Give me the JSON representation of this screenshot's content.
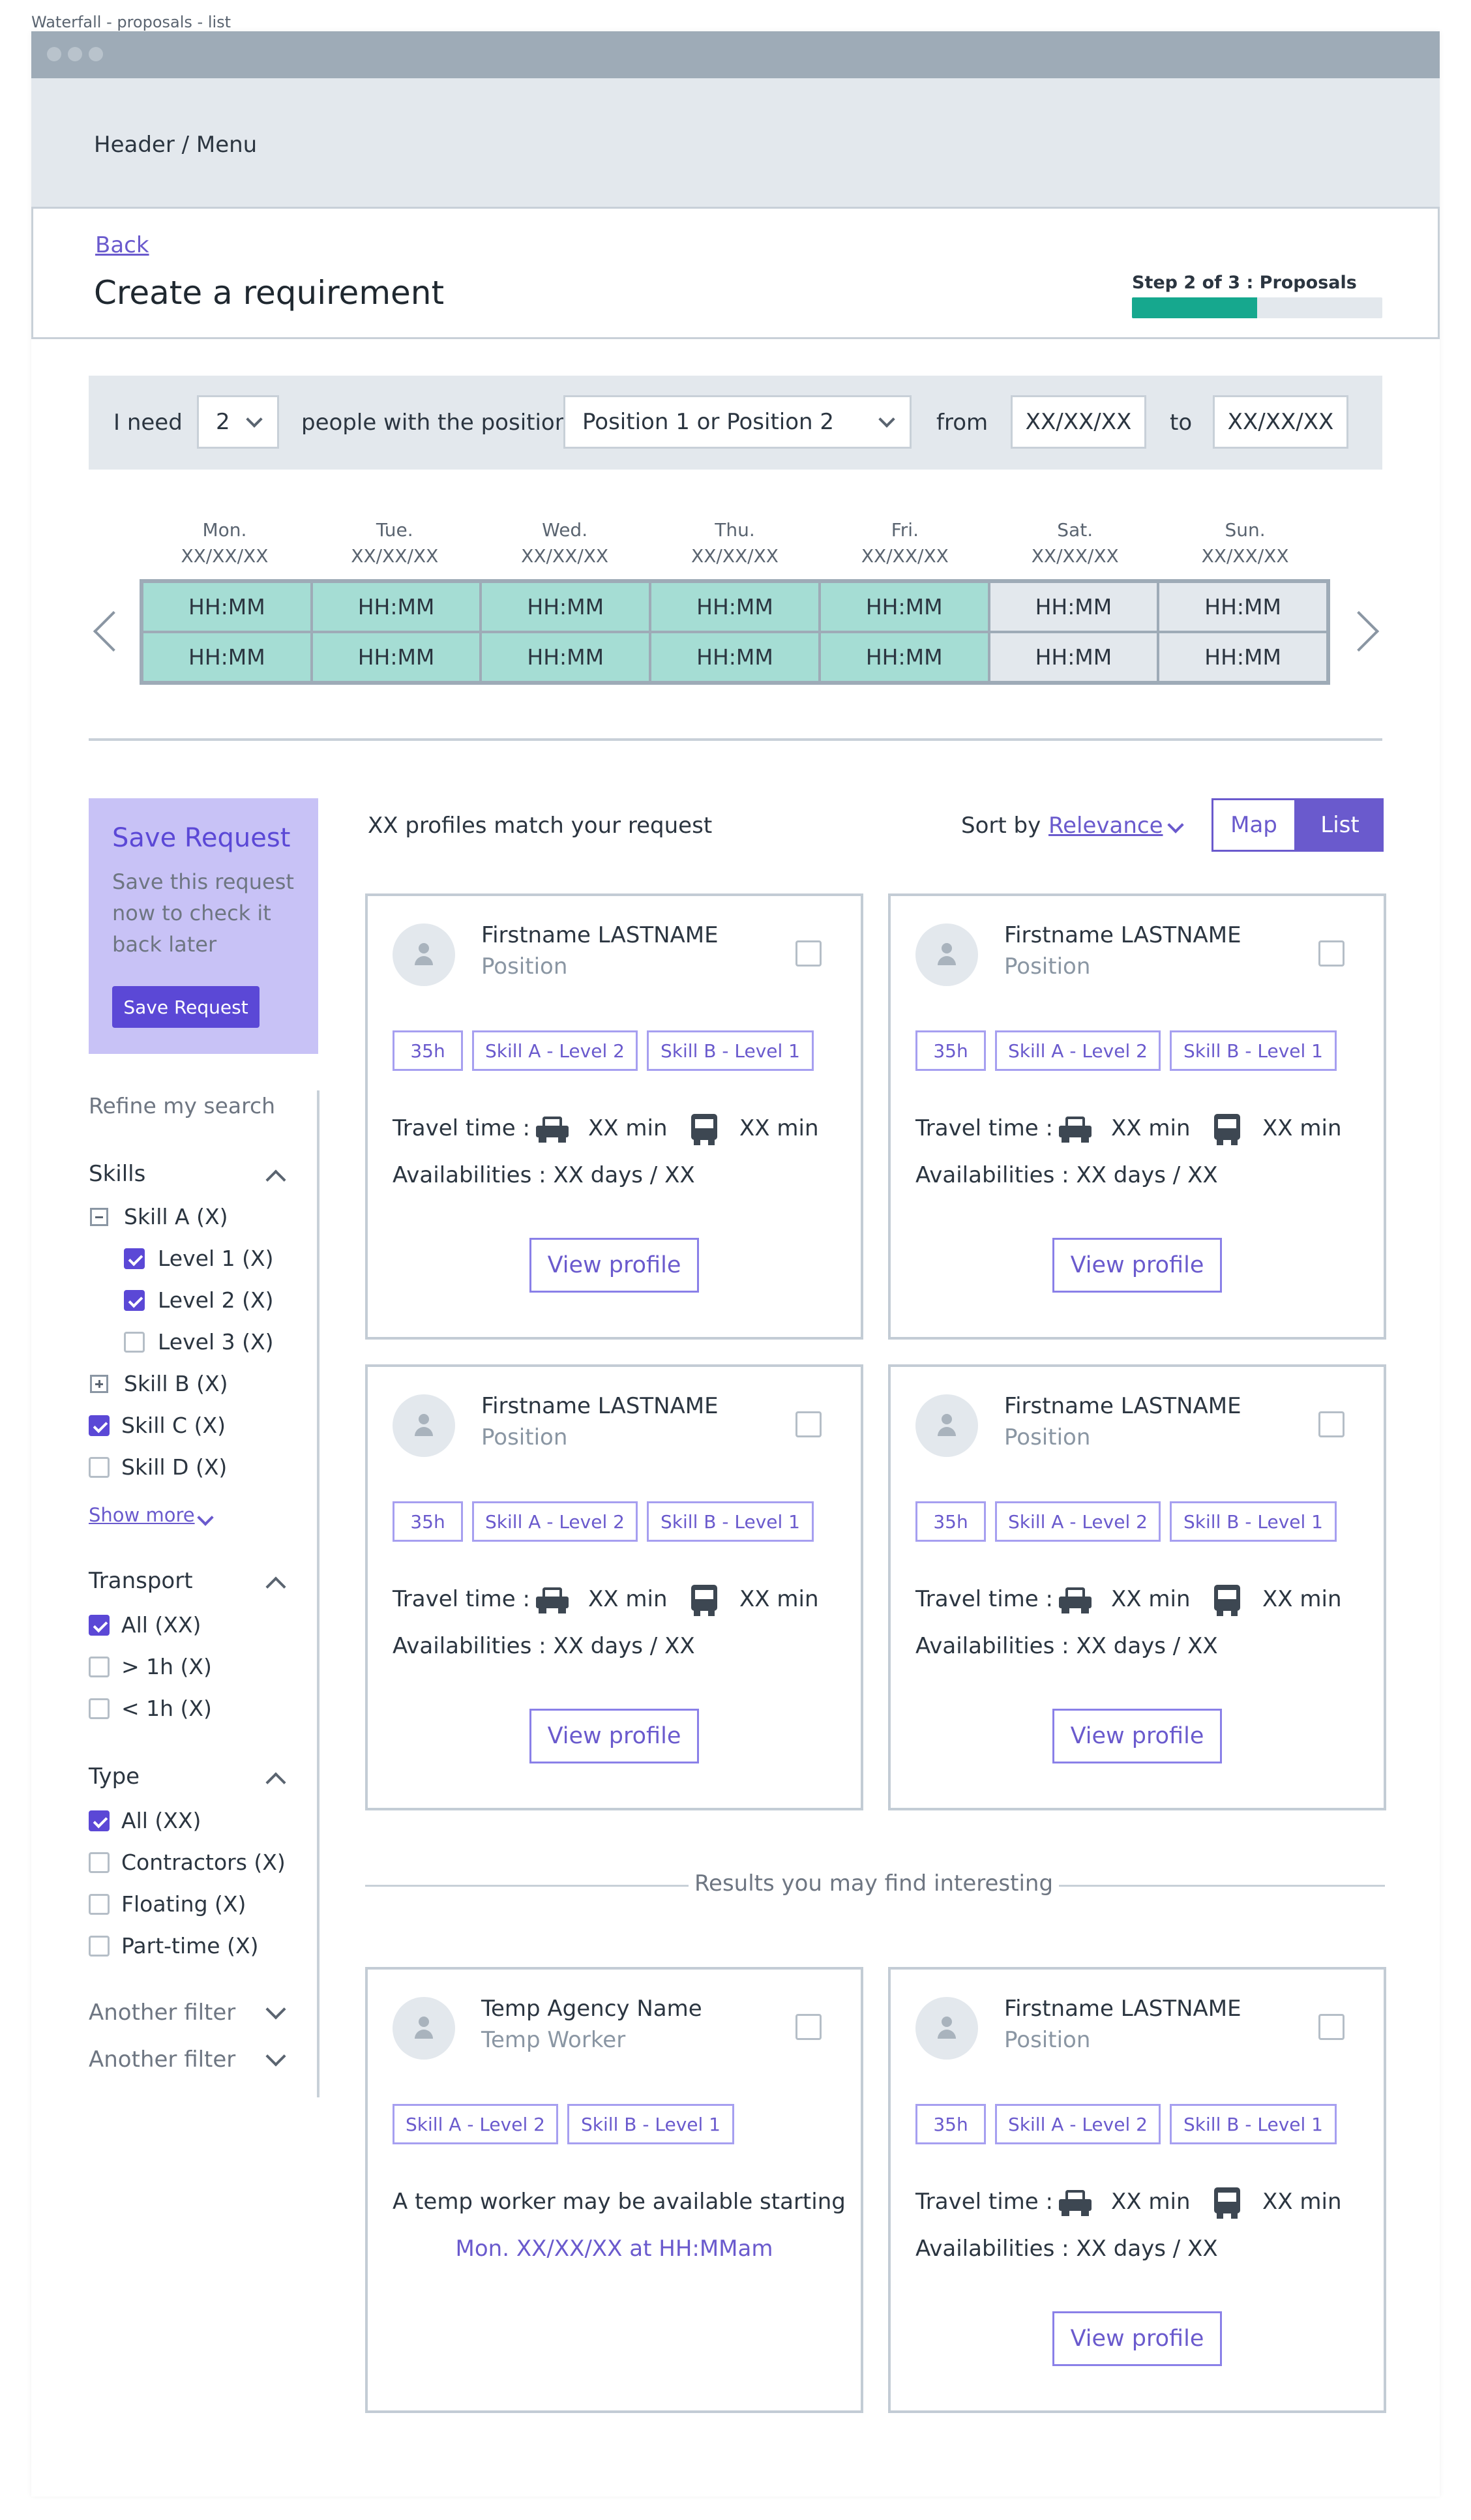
{
  "page_label": "Waterfall - proposals - list",
  "header": {
    "menu_label": "Header / Menu"
  },
  "title_section": {
    "back_label": "Back",
    "title": "Create a requirement",
    "step_label": "Step 2 of 3 : Proposals",
    "progress": 0.5
  },
  "request_bar": {
    "i_need": "I need",
    "quantity": "2",
    "people_label": "people with the position",
    "position_value": "Position 1 or Position 2",
    "from_label": "from",
    "from_value": "XX/XX/XX",
    "to_label": "to",
    "to_value": "XX/XX/XX"
  },
  "calendar": {
    "days": [
      {
        "name": "Mon.",
        "date": "XX/XX/XX"
      },
      {
        "name": "Tue.",
        "date": "XX/XX/XX"
      },
      {
        "name": "Wed.",
        "date": "XX/XX/XX"
      },
      {
        "name": "Thu.",
        "date": "XX/XX/XX"
      },
      {
        "name": "Fri.",
        "date": "XX/XX/XX"
      },
      {
        "name": "Sat.",
        "date": "XX/XX/XX"
      },
      {
        "name": "Sun.",
        "date": "XX/XX/XX"
      }
    ],
    "slot_label": "HH:MM",
    "weekday_color": "#a5ddd4",
    "weekend_color": "#e3e8ed"
  },
  "save_request": {
    "title": "Save Request",
    "description": "Save this request now to check it back later",
    "button_label": "Save Request"
  },
  "sidebar": {
    "refine_label": "Refine my search",
    "skills": {
      "title": "Skills",
      "skill_a": "Skill A (X)",
      "level1": "Level 1 (X)",
      "level2": "Level 2 (X)",
      "level3": "Level 3 (X)",
      "skill_b": "Skill B (X)",
      "skill_c": "Skill C (X)",
      "skill_d": "Skill D (X)",
      "show_more": "Show more"
    },
    "transport": {
      "title": "Transport",
      "all": "All (XX)",
      "over": "> 1h (X)",
      "under": "< 1h (X)"
    },
    "type": {
      "title": "Type",
      "all": "All (XX)",
      "contractors": "Contractors (X)",
      "floating": "Floating (X)",
      "part_time": "Part-time (X)"
    },
    "another_filter_1": "Another filter",
    "another_filter_2": "Another filter"
  },
  "results": {
    "match_text": "XX profiles match your request",
    "sort_label": "Sort by",
    "sort_value": "Relevance",
    "view_map": "Map",
    "view_list": "List",
    "accent": "#6a5acd"
  },
  "profile": {
    "name": "Firstname LASTNAME",
    "position": "Position",
    "tag_hours": "35h",
    "tag_skill_a": "Skill A - Level 2",
    "tag_skill_b": "Skill B - Level 1",
    "travel_label": "Travel time :",
    "car_time": "XX min",
    "bus_time": "XX min",
    "availability": "Availabilities : XX days / XX",
    "view_profile": "View profile"
  },
  "interesting": {
    "separator": "Results you may find interesting",
    "agency_name": "Temp Agency Name",
    "agency_role": "Temp Worker",
    "agency_text": "A temp worker may be available starting",
    "agency_date": "Mon. XX/XX/XX at HH:MMam"
  }
}
